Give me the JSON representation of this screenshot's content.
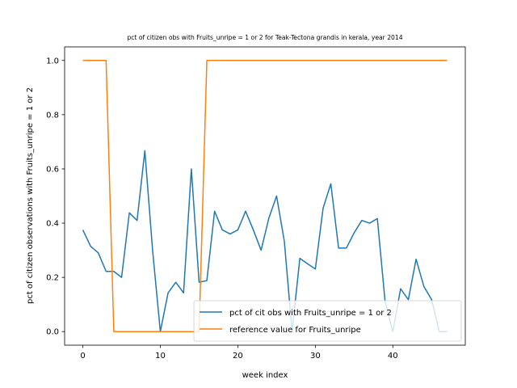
{
  "chart_data": {
    "type": "line",
    "title": "pct of citizen obs with Fruits_unripe = 1 or 2 for Teak-Tectona grandis in kerala, year 2014",
    "xlabel": "week index",
    "ylabel": "pct of citizen observations with Fruits_unripe = 1 or 2",
    "xlim": [
      -2.35,
      49.35
    ],
    "ylim": [
      -0.05,
      1.05
    ],
    "xticks": [
      0,
      10,
      20,
      30,
      40
    ],
    "yticks": [
      0.0,
      0.2,
      0.4,
      0.6,
      0.8,
      1.0
    ],
    "legend_position": "lower-right",
    "grid": false,
    "series": [
      {
        "name": "pct of cit obs with Fruits_unripe = 1 or 2",
        "color": "#1f77b4",
        "x": [
          0,
          1,
          2,
          3,
          4,
          5,
          6,
          7,
          8,
          9,
          10,
          11,
          12,
          13,
          14,
          15,
          16,
          17,
          18,
          19,
          20,
          21,
          22,
          23,
          24,
          25,
          26,
          27,
          28,
          29,
          30,
          31,
          32,
          33,
          34,
          35,
          36,
          37,
          38,
          39,
          40,
          41,
          42,
          43,
          44,
          45,
          46,
          47
        ],
        "y": [
          0.375,
          0.315,
          0.29,
          0.222,
          0.222,
          0.2,
          0.438,
          0.41,
          0.667,
          0.3,
          0.0,
          0.143,
          0.182,
          0.143,
          0.6,
          0.182,
          0.188,
          0.444,
          0.375,
          0.36,
          0.375,
          0.444,
          0.375,
          0.3,
          0.418,
          0.5,
          0.333,
          0.0,
          0.27,
          0.25,
          0.231,
          0.455,
          0.545,
          0.308,
          0.308,
          0.364,
          0.41,
          0.4,
          0.417,
          0.111,
          0.0,
          0.158,
          0.118,
          0.267,
          0.167,
          0.118,
          0.0,
          0.0
        ]
      },
      {
        "name": "reference value for Fruits_unripe",
        "color": "#ff7f0e",
        "x": [
          0,
          1,
          2,
          3,
          4,
          5,
          6,
          7,
          8,
          9,
          10,
          11,
          12,
          13,
          14,
          15,
          16,
          17,
          18,
          19,
          20,
          21,
          22,
          23,
          24,
          25,
          26,
          27,
          28,
          29,
          30,
          31,
          32,
          33,
          34,
          35,
          36,
          37,
          38,
          39,
          40,
          41,
          42,
          43,
          44,
          45,
          46,
          47
        ],
        "y": [
          1,
          1,
          1,
          1,
          0,
          0,
          0,
          0,
          0,
          0,
          0,
          0,
          0,
          0,
          0,
          0,
          1,
          1,
          1,
          1,
          1,
          1,
          1,
          1,
          1,
          1,
          1,
          1,
          1,
          1,
          1,
          1,
          1,
          1,
          1,
          1,
          1,
          1,
          1,
          1,
          1,
          1,
          1,
          1,
          1,
          1,
          1,
          1
        ]
      }
    ]
  }
}
